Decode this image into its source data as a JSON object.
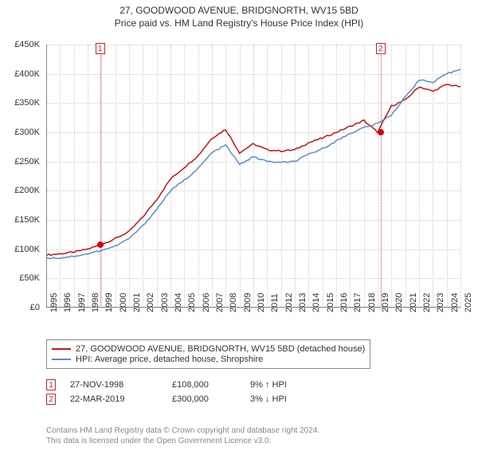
{
  "title": "27, GOODWOOD AVENUE, BRIDGNORTH, WV15 5BD",
  "subtitle": "Price paid vs. HM Land Registry's House Price Index (HPI)",
  "chart": {
    "type": "line",
    "background_color": "#ffffff",
    "grid_color": "#cccccc",
    "axis_color": "#888888",
    "text_color": "#333333",
    "font_family": "Arial",
    "title_fontsize": 12,
    "label_fontsize": 11,
    "y": {
      "min": 0,
      "max": 450000,
      "step": 50000,
      "format_prefix": "£",
      "format_suffix": "K",
      "divide_by": 1000
    },
    "x": {
      "years": [
        1995,
        1996,
        1997,
        1998,
        1999,
        2000,
        2001,
        2002,
        2003,
        2004,
        2005,
        2006,
        2007,
        2008,
        2009,
        2010,
        2011,
        2012,
        2013,
        2014,
        2015,
        2016,
        2017,
        2018,
        2019,
        2020,
        2021,
        2022,
        2023,
        2024,
        2025
      ]
    },
    "series": [
      {
        "name": "27, GOODWOOD AVENUE, BRIDGNORTH, WV15 5BD (detached house)",
        "color": "#cc1111",
        "line_width": 1.5,
        "points": [
          [
            1995,
            90000
          ],
          [
            1996,
            92000
          ],
          [
            1997,
            95000
          ],
          [
            1998,
            100000
          ],
          [
            1999,
            108000
          ],
          [
            2000,
            118000
          ],
          [
            2001,
            130000
          ],
          [
            2002,
            155000
          ],
          [
            2003,
            185000
          ],
          [
            2004,
            220000
          ],
          [
            2005,
            240000
          ],
          [
            2006,
            260000
          ],
          [
            2007,
            290000
          ],
          [
            2008,
            305000
          ],
          [
            2009,
            265000
          ],
          [
            2010,
            280000
          ],
          [
            2011,
            270000
          ],
          [
            2012,
            268000
          ],
          [
            2013,
            270000
          ],
          [
            2014,
            282000
          ],
          [
            2015,
            290000
          ],
          [
            2016,
            300000
          ],
          [
            2017,
            310000
          ],
          [
            2018,
            320000
          ],
          [
            2019,
            300000
          ],
          [
            2020,
            345000
          ],
          [
            2021,
            355000
          ],
          [
            2022,
            378000
          ],
          [
            2023,
            370000
          ],
          [
            2024,
            382000
          ],
          [
            2025,
            378000
          ]
        ]
      },
      {
        "name": "HPI: Average price, detached house, Shropshire",
        "color": "#5b8bd4",
        "line_width": 1.5,
        "points": [
          [
            1995,
            85000
          ],
          [
            1996,
            85000
          ],
          [
            1997,
            88000
          ],
          [
            1998,
            92000
          ],
          [
            1999,
            98000
          ],
          [
            2000,
            105000
          ],
          [
            2001,
            118000
          ],
          [
            2002,
            140000
          ],
          [
            2003,
            168000
          ],
          [
            2004,
            200000
          ],
          [
            2005,
            218000
          ],
          [
            2006,
            238000
          ],
          [
            2007,
            265000
          ],
          [
            2008,
            278000
          ],
          [
            2009,
            245000
          ],
          [
            2010,
            258000
          ],
          [
            2011,
            250000
          ],
          [
            2012,
            248000
          ],
          [
            2013,
            250000
          ],
          [
            2014,
            262000
          ],
          [
            2015,
            272000
          ],
          [
            2016,
            285000
          ],
          [
            2017,
            298000
          ],
          [
            2018,
            308000
          ],
          [
            2019,
            315000
          ],
          [
            2020,
            330000
          ],
          [
            2021,
            360000
          ],
          [
            2022,
            390000
          ],
          [
            2023,
            385000
          ],
          [
            2024,
            400000
          ],
          [
            2025,
            408000
          ]
        ]
      }
    ],
    "events": [
      {
        "id": "1",
        "x_year": 1998.9,
        "y_value": 108000,
        "line_color": "#cc4444"
      },
      {
        "id": "2",
        "x_year": 2019.22,
        "y_value": 300000,
        "line_color": "#cc4444"
      }
    ]
  },
  "legend": {
    "border_color": "#888888",
    "items": [
      {
        "label": "27, GOODWOOD AVENUE, BRIDGNORTH, WV15 5BD (detached house)",
        "color": "#cc1111"
      },
      {
        "label": "HPI: Average price, detached house, Shropshire",
        "color": "#5b8bd4"
      }
    ]
  },
  "transactions": [
    {
      "badge": "1",
      "date": "27-NOV-1998",
      "price": "£108,000",
      "delta": "9% ↑ HPI"
    },
    {
      "badge": "2",
      "date": "22-MAR-2019",
      "price": "£300,000",
      "delta": "3% ↓ HPI"
    }
  ],
  "footer": {
    "line1": "Contains HM Land Registry data © Crown copyright and database right 2024.",
    "line2": "This data is licensed under the Open Government Licence v3.0."
  }
}
